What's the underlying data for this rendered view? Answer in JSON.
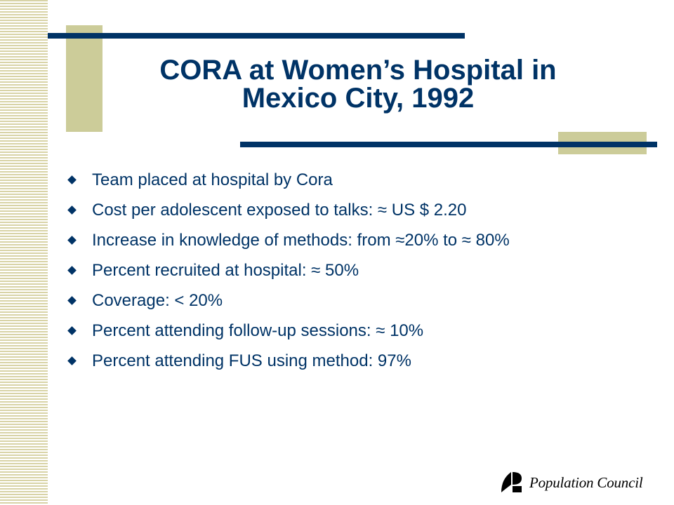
{
  "slide": {
    "title_line1": "CORA at Women’s Hospital in",
    "title_line2": "Mexico City, 1992",
    "bullets": [
      "Team placed at hospital by Cora",
      "Cost per adolescent exposed to talks: ≈ US $ 2.20",
      "Increase in knowledge of methods: from ≈20% to ≈ 80%",
      "Percent recruited at hospital: ≈ 50%",
      "Coverage: < 20%",
      "Percent attending follow-up sessions: ≈ 10%",
      "Percent attending FUS using method: 97%"
    ]
  },
  "logo": {
    "text": "Population Council",
    "icon": "population-council-logo-icon"
  },
  "colors": {
    "title": "#003366",
    "accent_bar": "#003366",
    "tan": "#cccc99",
    "stripe": "#d8d3a6"
  }
}
